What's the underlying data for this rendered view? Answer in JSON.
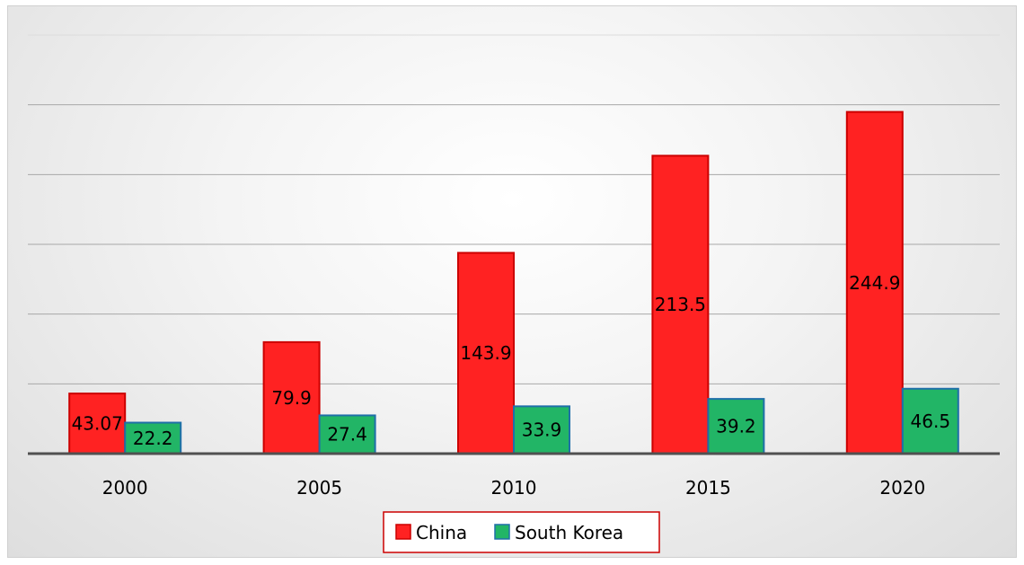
{
  "chart_data": {
    "type": "bar",
    "title": "",
    "xlabel": "",
    "ylabel": "",
    "categories": [
      "2000",
      "2005",
      "2010",
      "2015",
      "2020"
    ],
    "series": [
      {
        "name": "China",
        "color": "#ff2222",
        "border": "#cc0000",
        "values": [
          43.07,
          79.9,
          143.9,
          213.5,
          244.9
        ],
        "labels": [
          "43.07",
          "79.9",
          "143.9",
          "213.5",
          "244.9"
        ]
      },
      {
        "name": "South Korea",
        "color": "#22b566",
        "border": "#1f6fa8",
        "values": [
          22.2,
          27.4,
          33.9,
          39.2,
          46.5
        ],
        "labels": [
          "22.2",
          "27.4",
          "33.9",
          "39.2",
          "46.5"
        ]
      }
    ],
    "ylim": [
      0,
      300
    ],
    "grid": true,
    "legend_position": "bottom"
  }
}
